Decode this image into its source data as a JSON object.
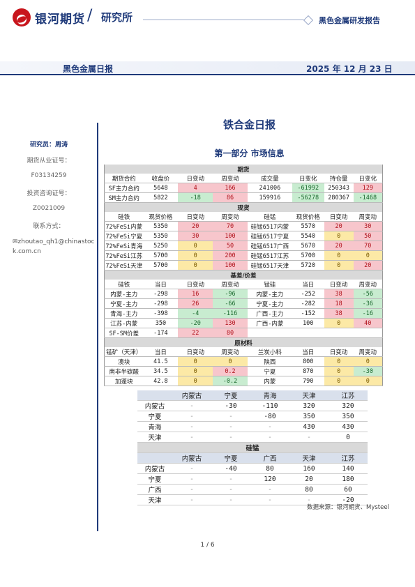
{
  "header": {
    "logo_text": "银河期货",
    "slash": "/",
    "institute": "研究所",
    "right_title": "黑色金属研发报告",
    "band_title": "黑色金属日报",
    "date": "2025 年 12 月 23 日"
  },
  "sidebar": {
    "researcher_label": "研究员：周涛",
    "license_label": "期货从业证号：",
    "license_no": "F03134259",
    "consult_label": "投资咨询证号：",
    "consult_no": "Z0021009",
    "contact_label": "联系方式：",
    "email": "zhoutao_qh1@chinastock.com.cn"
  },
  "main": {
    "title": "铁合金日报",
    "subtitle": "第一部分 市场信息",
    "source": "数据来源：银河期货、Mysteel",
    "page": "1 / 6"
  },
  "futures": {
    "section": "期货",
    "headers": [
      "期货合约",
      "收盘价",
      "日变动",
      "周变动",
      "成交量",
      "日变化",
      "持仓量",
      "日变化"
    ],
    "rows": [
      [
        "SF主力合约",
        "5648",
        "4",
        "166",
        "241006",
        "-61992",
        "250343",
        "129"
      ],
      [
        "SM主力合约",
        "5822",
        "-18",
        "86",
        "159916",
        "-56278",
        "280367",
        "-1468"
      ]
    ],
    "colors": [
      [
        "",
        "",
        "r",
        "r",
        "",
        "g",
        "",
        "r"
      ],
      [
        "",
        "",
        "g",
        "r",
        "",
        "g",
        "",
        "g"
      ]
    ]
  },
  "spot": {
    "section": "现货",
    "headers": [
      "硅铁",
      "现货价格",
      "日变动",
      "周变动",
      "硅锰",
      "现货价格",
      "日变动",
      "周变动"
    ],
    "rows": [
      [
        "72%FeSi内蒙",
        "5350",
        "20",
        "70",
        "硅锰6517内蒙",
        "5570",
        "20",
        "30"
      ],
      [
        "72%FeSi宁夏",
        "5350",
        "30",
        "100",
        "硅锰6517宁夏",
        "5540",
        "0",
        "50"
      ],
      [
        "72%FeSi青海",
        "5250",
        "0",
        "50",
        "硅锰6517广西",
        "5670",
        "20",
        "70"
      ],
      [
        "72%FeSi江苏",
        "5700",
        "0",
        "200",
        "硅锰6517江苏",
        "5700",
        "0",
        "0"
      ],
      [
        "72%FeSi天津",
        "5700",
        "0",
        "100",
        "硅锰6517天津",
        "5720",
        "0",
        "20"
      ]
    ],
    "colors": [
      [
        "",
        "",
        "r",
        "r",
        "",
        "",
        "r",
        "r"
      ],
      [
        "",
        "",
        "r",
        "r",
        "",
        "",
        "y",
        "r"
      ],
      [
        "",
        "",
        "y",
        "r",
        "",
        "",
        "r",
        "r"
      ],
      [
        "",
        "",
        "y",
        "r",
        "",
        "",
        "y",
        "y"
      ],
      [
        "",
        "",
        "y",
        "r",
        "",
        "",
        "y",
        "r"
      ]
    ]
  },
  "basis": {
    "section": "基差/价差",
    "headers": [
      "硅铁",
      "当日",
      "日变动",
      "周变动",
      "锰硅",
      "当日",
      "日变动",
      "周变动"
    ],
    "rows": [
      [
        "内蒙-主力",
        "-298",
        "16",
        "-96",
        "内蒙-主力",
        "-252",
        "38",
        "-56"
      ],
      [
        "宁夏-主力",
        "-298",
        "26",
        "-66",
        "宁夏-主力",
        "-282",
        "18",
        "-36"
      ],
      [
        "青海-主力",
        "-398",
        "-4",
        "-116",
        "广西-主力",
        "-152",
        "38",
        "-16"
      ],
      [
        "江苏-内蒙",
        "350",
        "-20",
        "130",
        "广西-内蒙",
        "100",
        "0",
        "40"
      ],
      [
        "SF-SM价差",
        "-174",
        "22",
        "80",
        "",
        "",
        "",
        ""
      ]
    ],
    "colors": [
      [
        "",
        "",
        "r",
        "g",
        "",
        "",
        "r",
        "g"
      ],
      [
        "",
        "",
        "r",
        "g",
        "",
        "",
        "r",
        "g"
      ],
      [
        "",
        "",
        "g",
        "g",
        "",
        "",
        "r",
        "g"
      ],
      [
        "",
        "",
        "g",
        "r",
        "",
        "",
        "y",
        "r"
      ],
      [
        "",
        "",
        "r",
        "r",
        "",
        "",
        "",
        ""
      ]
    ]
  },
  "raw": {
    "section": "原材料",
    "headers": [
      "锰矿（天津）",
      "当日",
      "日变动",
      "周变动",
      "兰炭小料",
      "当日",
      "日变动",
      "周变动"
    ],
    "rows": [
      [
        "澳块",
        "41.5",
        "0",
        "0",
        "陕西",
        "800",
        "0",
        "0"
      ],
      [
        "南非半碳酸",
        "34.5",
        "0",
        "0.2",
        "宁夏",
        "870",
        "0",
        "-30"
      ],
      [
        "加蓬块",
        "42.8",
        "0",
        "-0.2",
        "内蒙",
        "790",
        "0",
        "0"
      ]
    ],
    "colors": [
      [
        "",
        "",
        "y",
        "y",
        "",
        "",
        "y",
        "y"
      ],
      [
        "",
        "",
        "y",
        "r",
        "",
        "",
        "y",
        "g"
      ],
      [
        "",
        "",
        "y",
        "g",
        "",
        "",
        "y",
        "y"
      ]
    ]
  },
  "region1": {
    "headers": [
      "",
      "内蒙古",
      "宁夏",
      "青海",
      "天津",
      "江苏"
    ],
    "rows": [
      [
        "内蒙古",
        "-",
        "-30",
        "-110",
        "320",
        "320"
      ],
      [
        "宁夏",
        "-",
        "-",
        "-80",
        "350",
        "350"
      ],
      [
        "青海",
        "-",
        "-",
        "-",
        "430",
        "430"
      ],
      [
        "天津",
        "-",
        "-",
        "-",
        "-",
        "0"
      ]
    ]
  },
  "region2": {
    "section": "硅锰",
    "headers": [
      "",
      "内蒙古",
      "宁夏",
      "广西",
      "天津",
      "江苏"
    ],
    "rows": [
      [
        "内蒙古",
        "-",
        "-40",
        "80",
        "160",
        "140"
      ],
      [
        "宁夏",
        "-",
        "-",
        "120",
        "20",
        "180"
      ],
      [
        "广西",
        "-",
        "-",
        "-",
        "80",
        "60"
      ],
      [
        "天津",
        "-",
        "-",
        "-",
        "-",
        "-20"
      ]
    ]
  }
}
